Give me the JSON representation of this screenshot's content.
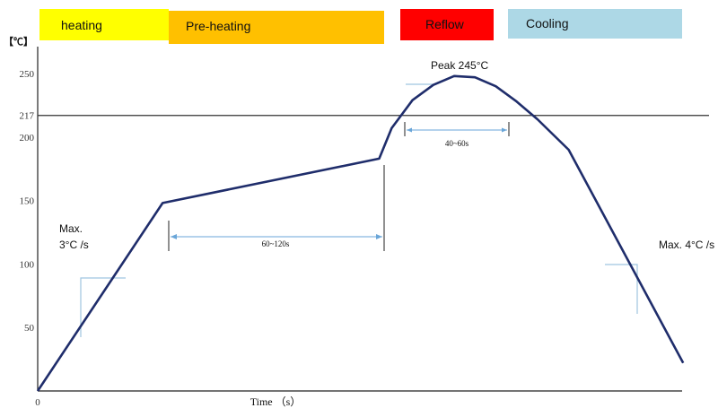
{
  "chart_data": {
    "type": "line",
    "title": "",
    "phases": [
      {
        "label": "heating",
        "color": "#ffff00"
      },
      {
        "label": "Pre-heating",
        "color": "#ffc000"
      },
      {
        "label": "Reflow",
        "color": "#ff0000"
      },
      {
        "label": "Cooling",
        "color": "#add8e6"
      }
    ],
    "ylabel": "【℃】",
    "xlabel": "Time （s）",
    "x_tick_label": "0",
    "yticks": [
      50,
      100,
      150,
      200,
      217,
      250
    ],
    "ylim": [
      0,
      250
    ],
    "series": [
      {
        "name": "",
        "points": [
          [
            0,
            0
          ],
          [
            6.0,
            148
          ],
          [
            16.4,
            183
          ],
          [
            17.0,
            207
          ],
          [
            18.0,
            229
          ],
          [
            19.0,
            241
          ],
          [
            20.0,
            248
          ],
          [
            21.0,
            247
          ],
          [
            22.0,
            240
          ],
          [
            23.0,
            228
          ],
          [
            24.0,
            214
          ],
          [
            25.5,
            190
          ],
          [
            31.0,
            22
          ]
        ]
      }
    ],
    "reference_line": {
      "y": 217
    },
    "annotations": {
      "peak": "Peak 245°C",
      "rise_rate": "Max. 3°C /s",
      "cool_rate": "Max. 4°C /s",
      "preheat_span": "60~120s",
      "reflow_span": "40~60s"
    }
  }
}
